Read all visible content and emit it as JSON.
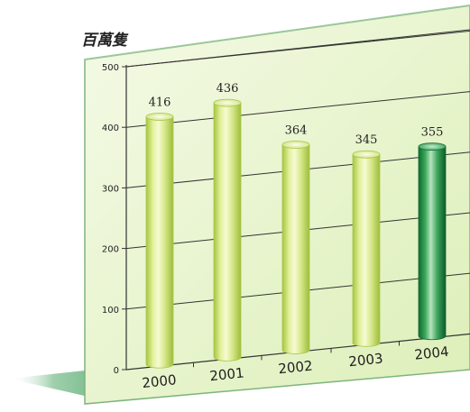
{
  "chart_data": {
    "type": "bar",
    "title": "",
    "unit_label": "百萬隻",
    "xlabel": "",
    "ylabel": "百萬隻",
    "categories": [
      "2000",
      "2001",
      "2002",
      "2003",
      "2004"
    ],
    "values": [
      416,
      436,
      364,
      345,
      355
    ],
    "value_labels": [
      "416",
      "436",
      "364",
      "345",
      "355"
    ],
    "y_ticks": [
      0,
      100,
      200,
      300,
      400,
      500
    ],
    "ylim": [
      0,
      500
    ],
    "grid": true,
    "legend": "none",
    "highlight_index": 4
  },
  "colors": {
    "panel_background": "#e6f4c9",
    "panel_border": "#79b07a",
    "bar_light": "#d7e88a",
    "bar_light_edge": "#a9c54a",
    "bar_highlight": "#2e9a4c",
    "bar_highlight_edge": "#136b33",
    "floor_shadow": "#7ab98d",
    "text": "#222222"
  }
}
